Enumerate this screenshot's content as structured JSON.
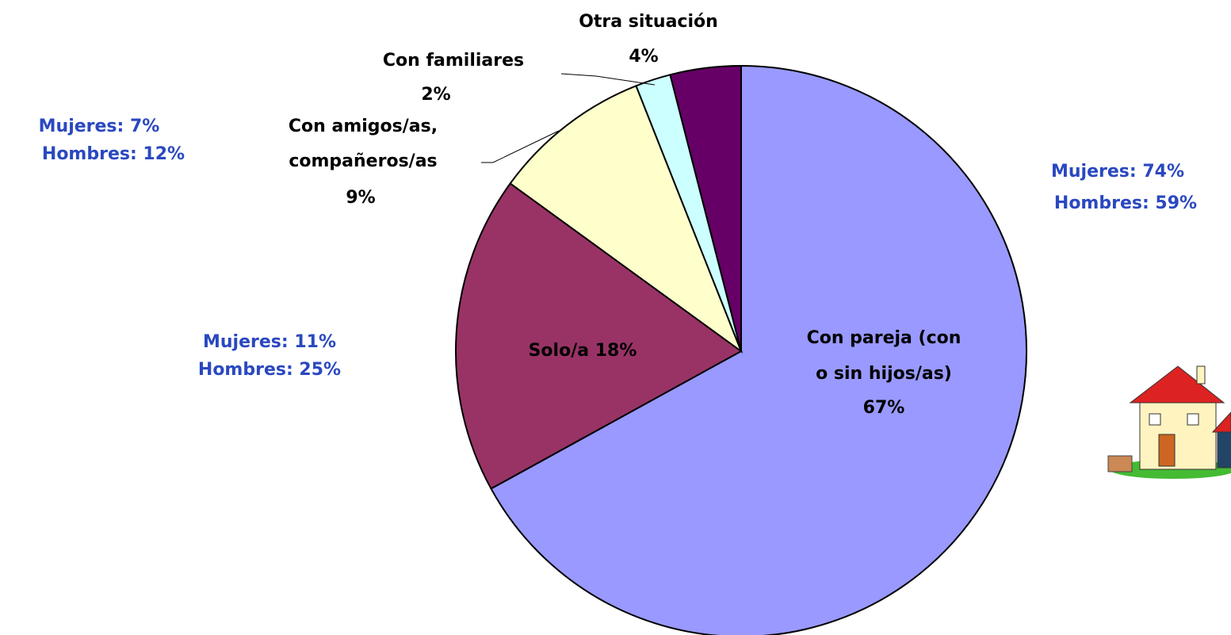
{
  "chart_data": {
    "type": "pie",
    "categories": [
      [
        "Con pareja (con",
        "o sin hijos/as)"
      ],
      [
        "Solo/a"
      ],
      [
        "Con amigos/as,",
        "compañeros/as"
      ],
      [
        "Con familiares"
      ],
      [
        "Otra situación"
      ]
    ],
    "values": [
      67,
      18,
      9,
      2,
      4
    ],
    "value_labels": [
      "67%",
      "18%",
      "9%",
      "2%",
      "4%"
    ],
    "colors": [
      "#9999ff",
      "#993366",
      "#ffffcc",
      "#ccffff",
      "#660066"
    ],
    "annotations": [
      "Mujeres: 74%",
      "Hombres: 59%",
      "Mujeres: 11%",
      "Hombres: 25%",
      "Mujeres: 7%",
      "Hombres: 12%"
    ]
  }
}
